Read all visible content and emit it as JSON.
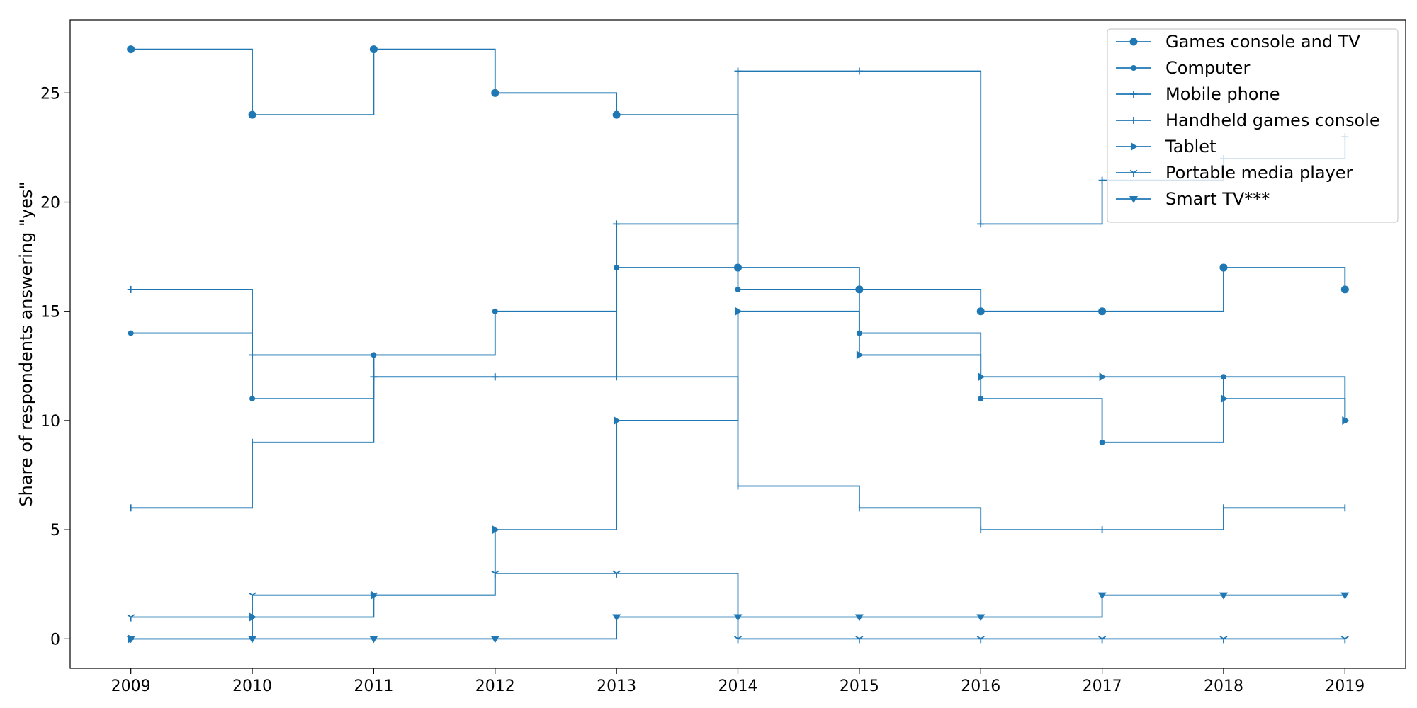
{
  "chart_data": {
    "type": "line",
    "style": "step-post",
    "xlabel": "",
    "ylabel": "Share of respondents answering \"yes\"",
    "x": [
      2009,
      2010,
      2011,
      2012,
      2013,
      2014,
      2015,
      2016,
      2017,
      2018,
      2019
    ],
    "xlim": [
      2008.5,
      2019.5
    ],
    "ylim": [
      -1.35,
      28.35
    ],
    "yticks": [
      0,
      5,
      10,
      15,
      20,
      25
    ],
    "grid": false,
    "legend_position": "top-right",
    "color": "#1f77b4",
    "series": [
      {
        "name": "Games console and TV",
        "marker": "circle-large",
        "values": [
          27,
          24,
          27,
          25,
          24,
          17,
          16,
          15,
          15,
          17,
          16
        ]
      },
      {
        "name": "Computer",
        "marker": "circle-small",
        "values": [
          14,
          11,
          13,
          15,
          17,
          16,
          14,
          11,
          9,
          12,
          10
        ]
      },
      {
        "name": "Mobile phone",
        "marker": "plus",
        "values": [
          16,
          13,
          12,
          12,
          19,
          26,
          26,
          19,
          21,
          22,
          23
        ]
      },
      {
        "name": "Handheld games console",
        "marker": "vline",
        "values": [
          6,
          9,
          12,
          12,
          12,
          7,
          6,
          5,
          5,
          6,
          6
        ]
      },
      {
        "name": "Tablet",
        "marker": "triangle-right",
        "values": [
          0,
          1,
          2,
          5,
          10,
          15,
          13,
          12,
          12,
          11,
          10
        ]
      },
      {
        "name": "Portable media player",
        "marker": "tri-down",
        "values": [
          1,
          2,
          2,
          3,
          3,
          0,
          0,
          0,
          0,
          0,
          0
        ]
      },
      {
        "name": "Smart TV***",
        "marker": "triangle-down",
        "values": [
          0,
          0,
          0,
          0,
          1,
          1,
          1,
          1,
          2,
          2,
          2
        ]
      }
    ]
  }
}
